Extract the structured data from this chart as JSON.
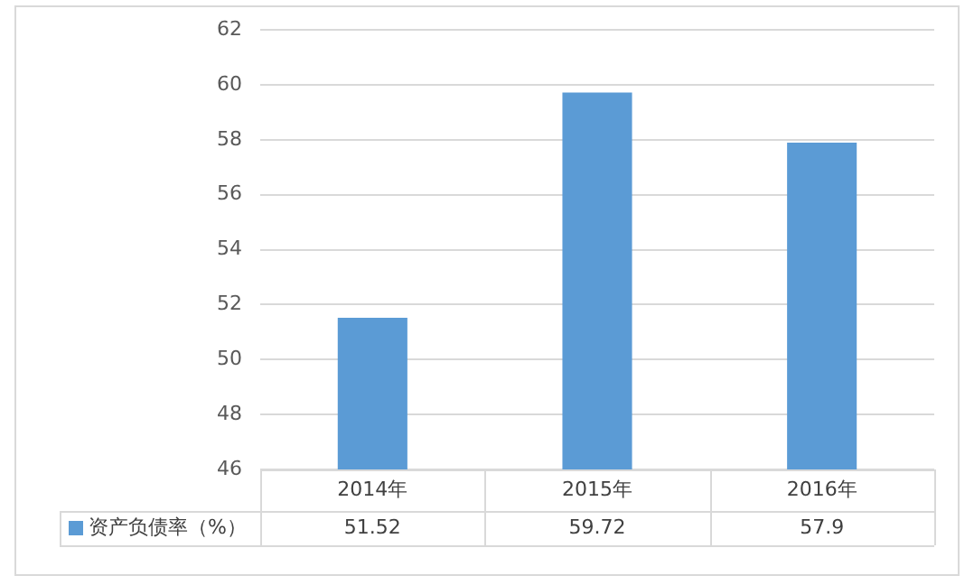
{
  "chart_data": {
    "type": "bar",
    "categories": [
      "2014年",
      "2015年",
      "2016年"
    ],
    "series": [
      {
        "name": "资产负债率（%）",
        "color": "#5b9bd5",
        "values": [
          51.52,
          59.72,
          57.9
        ]
      }
    ],
    "ylim": [
      46,
      62
    ],
    "yticks": [
      46,
      48,
      50,
      52,
      54,
      56,
      58,
      60,
      62
    ],
    "grid": "y",
    "legend": "bottom",
    "data_labels": true
  }
}
